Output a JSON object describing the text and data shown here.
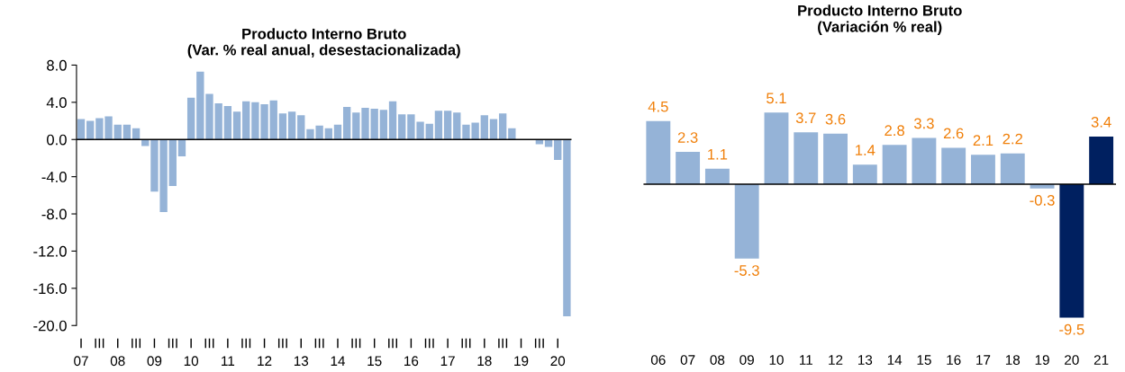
{
  "chart_data": [
    {
      "type": "bar",
      "title": "Producto Interno Bruto\n(Var. % real anual, desestacionalizada)",
      "categories": [
        "I\n07",
        null,
        "III",
        null,
        "I\n08",
        null,
        "III",
        null,
        "I\n09",
        null,
        "III",
        null,
        "I\n10",
        null,
        "III",
        null,
        "I\n11",
        null,
        "III",
        null,
        "I\n12",
        null,
        "III",
        null,
        "I\n13",
        null,
        "III",
        null,
        "I\n14",
        null,
        "III",
        null,
        "I\n15",
        null,
        "III",
        null,
        "I\n16",
        null,
        "III",
        null,
        "I\n17",
        null,
        "III",
        null,
        "I\n18",
        null,
        "III",
        null,
        "I\n19",
        null,
        "III",
        null,
        "I\n20",
        null
      ],
      "values": [
        2.2,
        2.0,
        2.3,
        2.5,
        1.6,
        1.6,
        1.2,
        -0.7,
        -5.6,
        -7.8,
        -5.0,
        -1.8,
        4.5,
        7.3,
        4.9,
        3.9,
        3.6,
        3.0,
        4.1,
        4.0,
        3.8,
        4.2,
        2.8,
        3.0,
        2.6,
        1.1,
        1.5,
        1.2,
        1.6,
        3.5,
        2.9,
        3.4,
        3.3,
        3.2,
        4.1,
        2.7,
        2.7,
        1.9,
        1.7,
        3.1,
        3.1,
        2.9,
        1.6,
        1.8,
        2.6,
        2.2,
        2.8,
        1.2,
        0.0,
        0.0,
        -0.5,
        -0.8,
        -2.2,
        -19.0
      ],
      "color": "#95b3d7",
      "ylim": [
        -20,
        8
      ],
      "yticks": [
        {
          "value": -20,
          "label": "-20.0"
        },
        {
          "value": -16,
          "label": "-16.0"
        },
        {
          "value": -12,
          "label": "-12.0"
        },
        {
          "value": -8,
          "label": "-8.0"
        },
        {
          "value": -4,
          "label": "-4.0"
        },
        {
          "value": 0,
          "label": "0.0"
        },
        {
          "value": 4,
          "label": "4.0"
        },
        {
          "value": 8,
          "label": "8.0"
        }
      ],
      "ref_lines": [
        {
          "axis": "y",
          "value": 0,
          "color": "#000000"
        }
      ],
      "grid": false,
      "legend": false
    },
    {
      "type": "bar",
      "title": "Producto Interno Bruto\n(Variación % real)",
      "categories": [
        "06",
        "07",
        "08",
        "09",
        "10",
        "11",
        "12",
        "13",
        "14",
        "15",
        "16",
        "17",
        "18",
        "19",
        "20",
        "21"
      ],
      "values": [
        4.5,
        2.3,
        1.1,
        -5.3,
        5.1,
        3.7,
        3.6,
        1.4,
        2.8,
        3.3,
        2.6,
        2.1,
        2.2,
        -0.3,
        -9.5,
        3.4
      ],
      "colors": [
        "#95b3d7",
        "#95b3d7",
        "#95b3d7",
        "#95b3d7",
        "#95b3d7",
        "#95b3d7",
        "#95b3d7",
        "#95b3d7",
        "#95b3d7",
        "#95b3d7",
        "#95b3d7",
        "#95b3d7",
        "#95b3d7",
        "#95b3d7",
        "#002060",
        "#002060"
      ],
      "data_labels": true,
      "ref_lines": [
        {
          "axis": "y",
          "value": 0,
          "color": "#000000"
        }
      ],
      "grid": false,
      "legend": false
    }
  ]
}
